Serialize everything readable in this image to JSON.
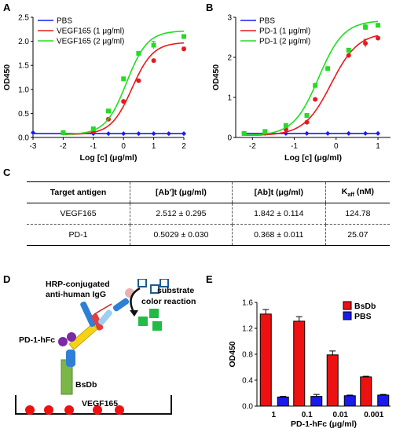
{
  "panels": {
    "A": "A",
    "B": "B",
    "C": "C",
    "D": "D",
    "E": "E"
  },
  "colors": {
    "pbs": "#1a1aff",
    "low": "#e8191c",
    "high": "#22dd22",
    "bar_red": "#ee1111",
    "bar_blue": "#1a1aee"
  },
  "chart_data": [
    {
      "id": "A",
      "type": "line",
      "xlabel": "Log [c] (μg/ml)",
      "ylabel": "OD450",
      "xlim": [
        -3,
        2
      ],
      "ylim": [
        0,
        2.5
      ],
      "xticks": [
        "-3",
        "-2",
        "-1",
        "0",
        "1",
        "2"
      ],
      "yticks": [
        "0.0",
        "0.5",
        "1.0",
        "1.5",
        "2.0",
        "2.5"
      ],
      "legend_position": "top-left",
      "series": [
        {
          "name": "PBS",
          "color": "#1a1aff",
          "marker": "diamond",
          "x": [
            -3,
            -2,
            -1,
            -0.5,
            0,
            0.5,
            1,
            1.5,
            2
          ],
          "y": [
            0.1,
            0.09,
            0.08,
            0.08,
            0.08,
            0.08,
            0.08,
            0.08,
            0.08
          ],
          "err": [
            0,
            0,
            0,
            0,
            0,
            0,
            0,
            0,
            0
          ],
          "fit": {
            "bottom": 0.08,
            "top": 0.08,
            "ec50": 0,
            "hill": 1
          }
        },
        {
          "name": "VEGF165 (1 μg/ml)",
          "color": "#e8191c",
          "marker": "circle",
          "x": [
            -2,
            -1,
            -0.5,
            0,
            0.5,
            1,
            2
          ],
          "y": [
            0.1,
            0.12,
            0.38,
            0.75,
            1.18,
            1.6,
            1.84
          ],
          "err": [
            0,
            0,
            0,
            0,
            0,
            0,
            0.04
          ],
          "fit": {
            "bottom": 0.06,
            "top": 1.98,
            "ec50": 0.28,
            "hill": 1.25
          }
        },
        {
          "name": "VEGF165 (2 μg/ml)",
          "color": "#22dd22",
          "marker": "square",
          "x": [
            -2,
            -1,
            -0.5,
            0,
            0.5,
            1,
            2
          ],
          "y": [
            0.1,
            0.18,
            0.55,
            1.22,
            1.75,
            1.92,
            2.1
          ],
          "err": [
            0,
            0,
            0,
            0,
            0,
            0.08,
            0
          ],
          "fit": {
            "bottom": 0.06,
            "top": 2.22,
            "ec50": 0.1,
            "hill": 1.25
          }
        }
      ]
    },
    {
      "id": "B",
      "type": "line",
      "xlabel": "Log [c] (μg/ml)",
      "ylabel": "OD450",
      "xlim": [
        -2.4,
        1.3
      ],
      "ylim": [
        0,
        3
      ],
      "xticks": [
        "-2",
        "-1",
        "0",
        "1"
      ],
      "yticks": [
        "0",
        "1",
        "2",
        "3"
      ],
      "legend_position": "top-left",
      "series": [
        {
          "name": "PBS",
          "color": "#1a1aff",
          "marker": "diamond",
          "x": [
            -2.2,
            -1.7,
            -1.2,
            -0.7,
            -0.2,
            0.3,
            0.7,
            1
          ],
          "y": [
            0.1,
            0.1,
            0.1,
            0.1,
            0.1,
            0.1,
            0.1,
            0.1
          ],
          "err": [
            0,
            0,
            0,
            0,
            0,
            0,
            0,
            0
          ],
          "fit": {
            "bottom": 0.1,
            "top": 0.1,
            "ec50": 0,
            "hill": 1
          }
        },
        {
          "name": "PD-1 (1 μg/ml)",
          "color": "#e8191c",
          "marker": "circle",
          "x": [
            -2.2,
            -1.7,
            -1.2,
            -0.7,
            -0.5,
            -0.2,
            0.3,
            0.7,
            1
          ],
          "y": [
            0.1,
            0.12,
            0.2,
            0.38,
            0.95,
            1.72,
            2.05,
            2.35,
            2.48
          ],
          "err": [
            0,
            0,
            0,
            0,
            0,
            0,
            0,
            0.1,
            0
          ],
          "fit": {
            "bottom": 0.05,
            "top": 2.62,
            "ec50": -0.12,
            "hill": 1.35
          }
        },
        {
          "name": "PD-1 (2 μg/ml)",
          "color": "#22dd22",
          "marker": "square",
          "x": [
            -2.2,
            -1.7,
            -1.2,
            -0.7,
            -0.5,
            -0.2,
            0.3,
            0.7,
            1
          ],
          "y": [
            0.1,
            0.15,
            0.3,
            0.55,
            1.3,
            1.72,
            2.18,
            2.75,
            2.8
          ],
          "err": [
            0,
            0,
            0,
            0,
            0,
            0,
            0,
            0.07,
            0
          ],
          "fit": {
            "bottom": 0.05,
            "top": 2.92,
            "ec50": -0.42,
            "hill": 1.45
          }
        }
      ]
    },
    {
      "id": "E",
      "type": "bar",
      "xlabel": "PD-1-hFc (μg/ml)",
      "ylabel": "OD450",
      "ylim": [
        0,
        1.6
      ],
      "yticks": [
        "0.0",
        "0.4",
        "0.8",
        "1.2",
        "1.6"
      ],
      "categories": [
        "1",
        "0.1",
        "0.01",
        "0.001"
      ],
      "legend_position": "top-right",
      "series": [
        {
          "name": "BsDb",
          "color": "#ee1111",
          "values": [
            1.42,
            1.31,
            0.79,
            0.45
          ],
          "err": [
            0.07,
            0.07,
            0.06,
            0.01
          ]
        },
        {
          "name": "PBS",
          "color": "#1a1aee",
          "values": [
            0.14,
            0.15,
            0.16,
            0.17
          ],
          "err": [
            0.01,
            0.03,
            0.01,
            0.01
          ]
        }
      ]
    }
  ],
  "table": {
    "headers": [
      "Target antigen",
      "[Ab']t (μg/ml)",
      "[Ab]t (μg/ml)",
      "K",
      "aff",
      " (nM)"
    ],
    "rows": [
      [
        "VEGF165",
        "2.512 ± 0.295",
        "1.842 ± 0.114",
        "124.78"
      ],
      [
        "PD-1",
        "0.5029 ± 0.030",
        "0.368 ± 0.011",
        "25.07"
      ]
    ]
  },
  "diagram": {
    "hrp_label_1": "HRP-conjugated",
    "hrp_label_2": "anti-human IgG",
    "substrate_label": "substrate",
    "color_reaction_label": "color reaction",
    "pdl_label": "PD-1-hFc",
    "bsdb_label": "BsDb",
    "vegf_label": "VEGF165"
  }
}
